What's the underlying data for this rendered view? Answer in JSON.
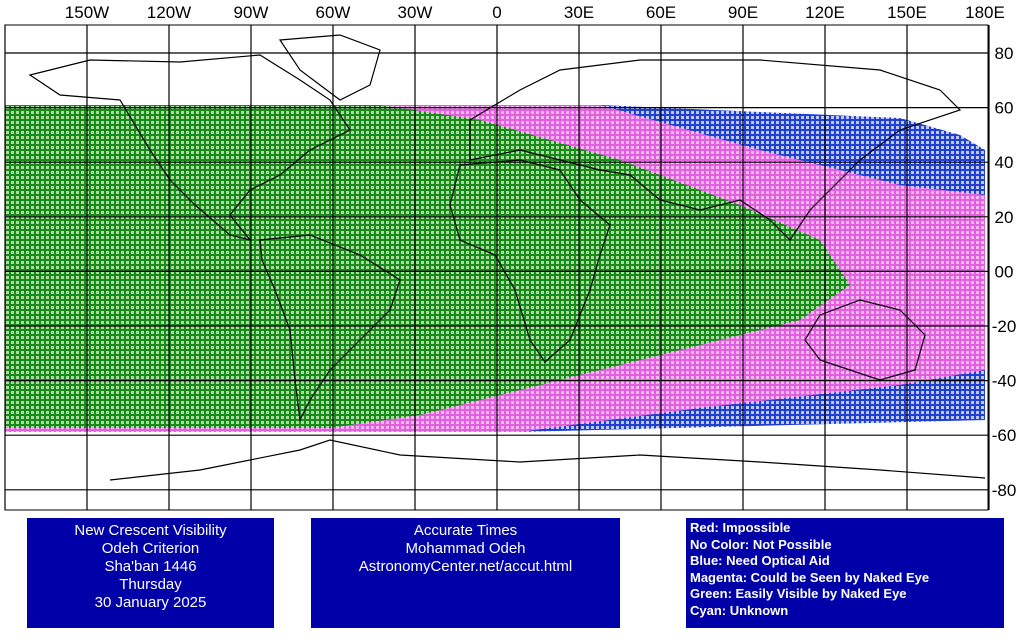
{
  "longitude_labels": [
    "150W",
    "120W",
    "90W",
    "60W",
    "30W",
    "0",
    "30E",
    "60E",
    "90E",
    "120E",
    "150E",
    "180E"
  ],
  "latitude_labels": [
    "80",
    "60",
    "40",
    "20",
    "00",
    "-20",
    "-40",
    "-60",
    "-80"
  ],
  "title_box": {
    "lines": [
      "New Crescent Visibility",
      "Odeh Criterion",
      "Sha'ban 1446",
      "Thursday",
      "30 January 2025"
    ]
  },
  "credits_box": {
    "lines": [
      "Accurate Times",
      "Mohammad Odeh",
      "AstronomyCenter.net/accut.html"
    ]
  },
  "legend": {
    "lines": [
      "Red: Impossible",
      "No Color: Not Possible",
      "Blue: Need Optical Aid",
      "Magenta: Could be Seen by Naked Eye",
      "Green: Easily Visible by Naked Eye",
      "Cyan: Unknown"
    ]
  }
}
